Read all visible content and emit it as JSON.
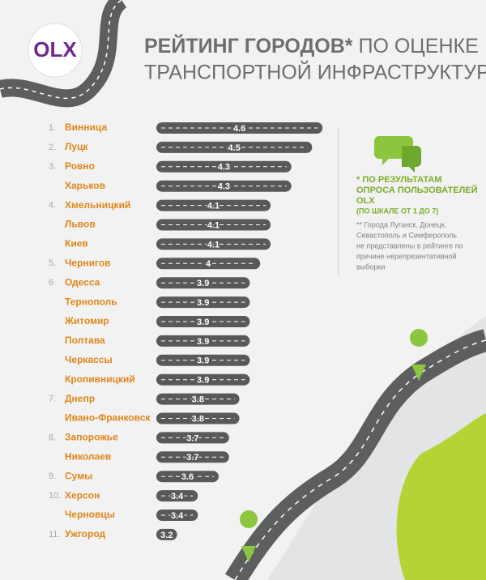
{
  "chart_data": {
    "type": "bar",
    "orientation": "horizontal",
    "logo": "OLX",
    "title": {
      "bold": "РЕЙТИНГ ГОРОДОВ*",
      "light": "ПО ОЦЕНКЕ",
      "line2": "ТРАНСПОРТНОЙ ИНФРАСТРУКТУРЫ"
    },
    "ranks": [
      "1.",
      "2.",
      "3.",
      null,
      "4.",
      null,
      null,
      "5.",
      "6.",
      null,
      null,
      null,
      null,
      null,
      "7.",
      null,
      "8.",
      null,
      "9.",
      "10.",
      null,
      "11."
    ],
    "categories": [
      "Винница",
      "Луцк",
      "Ровно",
      "Харьков",
      "Хмельницкий",
      "Львов",
      "Киев",
      "Чернигов",
      "Одесса",
      "Тернополь",
      "Житомир",
      "Полтава",
      "Черкассы",
      "Кропивницкий",
      "Днепр",
      "Ивано-Франковск",
      "Запорожье",
      "Николаев",
      "Сумы",
      "Херсон",
      "Черновцы",
      "Ужгород"
    ],
    "values": [
      4.6,
      4.5,
      4.3,
      4.3,
      4.1,
      4.1,
      4.1,
      4,
      3.9,
      3.9,
      3.9,
      3.9,
      3.9,
      3.9,
      3.8,
      3.8,
      3.7,
      3.7,
      3.6,
      3.4,
      3.4,
      3.2
    ],
    "color": "#58595b",
    "xlim": [
      3,
      4.7
    ],
    "note": [
      "* ПО РЕЗУЛЬТАТАМ",
      "ОПРОСА ПОЛЬЗОВАТЕЛЕЙ",
      "OLX",
      "(ПО ШКАЛЕ ОТ 1 ДО 7)"
    ],
    "footnote": [
      "** Города Луганск, Донецк,",
      "Севастополь и Симферополь",
      "не представлены в рейтинге по",
      "причине нерепрезентативной",
      "выборки"
    ]
  }
}
